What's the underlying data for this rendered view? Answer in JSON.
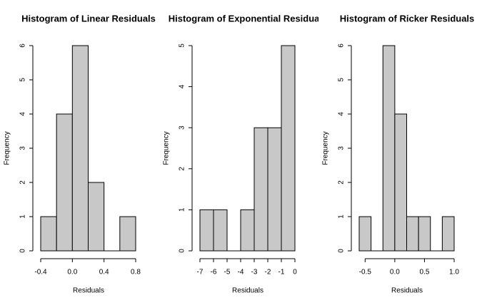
{
  "chart_data": [
    {
      "type": "histogram",
      "title": "Histogram of Linear Residuals",
      "x_label": "Residuals",
      "y_label": "Frequency",
      "bins": [
        -0.4,
        -0.2,
        0,
        0.2,
        0.4,
        0.6,
        0.8
      ],
      "values": [
        1,
        4,
        6,
        2,
        0,
        1
      ],
      "color": "#c8c8c8",
      "xlim": [
        -0.4,
        0.8
      ],
      "xticks": [
        -0.4,
        {
          "value": 0,
          "label": "0.0"
        },
        0.4,
        0.8
      ],
      "ylim": [
        0,
        6
      ],
      "yticks": [
        0,
        1,
        2,
        3,
        4,
        5,
        6
      ]
    },
    {
      "type": "histogram",
      "title": "Histogram of Exponential Residuals",
      "x_label": "Residuals",
      "y_label": "Frequency",
      "bins": [
        -7,
        -6,
        -5,
        -4,
        -3,
        -2,
        -1,
        0
      ],
      "values": [
        1,
        1,
        0,
        1,
        3,
        3,
        5
      ],
      "color": "#c8c8c8",
      "xlim": [
        -7,
        0
      ],
      "xticks": [
        -7,
        -6,
        -5,
        -4,
        -3,
        -2,
        -1,
        0
      ],
      "ylim": [
        0,
        5
      ],
      "yticks": [
        0,
        1,
        2,
        3,
        4,
        5
      ]
    },
    {
      "type": "histogram",
      "title": "Histogram of Ricker Residuals",
      "x_label": "Residuals",
      "y_label": "Frequency",
      "bins": [
        -0.6,
        -0.4,
        -0.2,
        0,
        0.2,
        0.4,
        0.6,
        0.8,
        1.0
      ],
      "values": [
        1,
        0,
        6,
        4,
        1,
        1,
        0,
        1
      ],
      "color": "#c8c8c8",
      "xlim": [
        -0.6,
        1.0
      ],
      "xticks": [
        -0.5,
        {
          "value": 0,
          "label": "0.0"
        },
        0.5,
        {
          "value": 1,
          "label": "1.0"
        }
      ],
      "ylim": [
        0,
        6
      ],
      "yticks": [
        0,
        1,
        2,
        3,
        4,
        5,
        6
      ]
    }
  ]
}
